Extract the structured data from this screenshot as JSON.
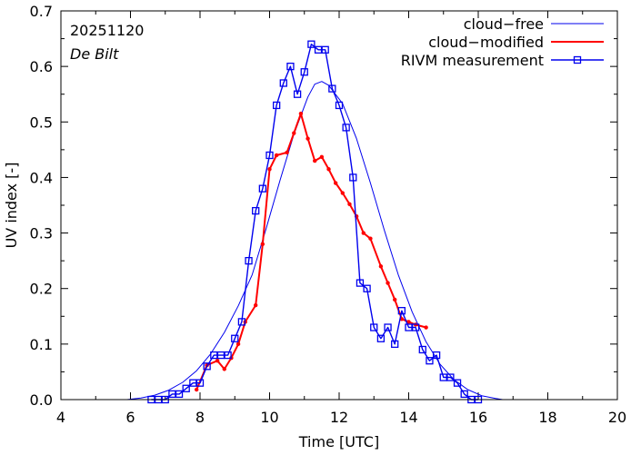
{
  "chart_data": {
    "type": "line",
    "xlabel": "Time  [UTC]",
    "ylabel": "UV index  [-]",
    "xlim": [
      4,
      20
    ],
    "ylim": [
      0,
      0.7
    ],
    "xticks": [
      "4",
      "6",
      "8",
      "10",
      "12",
      "14",
      "16",
      "18",
      "20"
    ],
    "yticks": [
      "0.0",
      "0.1",
      "0.2",
      "0.3",
      "0.4",
      "0.5",
      "0.6",
      "0.7"
    ],
    "annotations": {
      "date": "20251120",
      "location": "De Bilt"
    },
    "legend_position": "top-right",
    "series": [
      {
        "name": "cloud−free",
        "style": "line",
        "color": "#0000ee",
        "x": [
          5.9,
          6.3,
          6.7,
          7.1,
          7.5,
          7.9,
          8.3,
          8.7,
          9.1,
          9.5,
          9.9,
          10.3,
          10.7,
          11.1,
          11.3,
          11.5,
          11.7,
          12.1,
          12.5,
          12.9,
          13.3,
          13.7,
          14.1,
          14.5,
          14.9,
          15.3,
          15.7,
          16.1,
          16.5,
          16.7
        ],
        "y": [
          0.0,
          0.003,
          0.008,
          0.017,
          0.031,
          0.052,
          0.082,
          0.121,
          0.169,
          0.225,
          0.308,
          0.395,
          0.478,
          0.545,
          0.568,
          0.573,
          0.566,
          0.533,
          0.47,
          0.39,
          0.305,
          0.225,
          0.158,
          0.104,
          0.064,
          0.036,
          0.018,
          0.007,
          0.002,
          0.0
        ]
      },
      {
        "name": "cloud−modified",
        "style": "line-dots",
        "color": "#ff0000",
        "x": [
          7.9,
          8.2,
          8.5,
          8.7,
          8.9,
          9.1,
          9.3,
          9.6,
          9.8,
          10.0,
          10.2,
          10.5,
          10.7,
          10.9,
          11.1,
          11.3,
          11.5,
          11.7,
          11.9,
          12.1,
          12.3,
          12.5,
          12.7,
          12.9,
          13.2,
          13.4,
          13.6,
          13.8,
          14.0,
          14.2,
          14.5
        ],
        "y": [
          0.018,
          0.062,
          0.07,
          0.055,
          0.075,
          0.1,
          0.14,
          0.17,
          0.28,
          0.415,
          0.44,
          0.445,
          0.48,
          0.515,
          0.47,
          0.43,
          0.437,
          0.415,
          0.39,
          0.372,
          0.352,
          0.33,
          0.3,
          0.29,
          0.24,
          0.21,
          0.18,
          0.145,
          0.14,
          0.135,
          0.13
        ]
      },
      {
        "name": "RIVM measurement",
        "style": "line-squares",
        "color": "#0000ee",
        "x": [
          6.6,
          6.8,
          7.0,
          7.2,
          7.4,
          7.6,
          7.8,
          8.0,
          8.2,
          8.4,
          8.6,
          8.8,
          9.0,
          9.2,
          9.4,
          9.6,
          9.8,
          10.0,
          10.2,
          10.4,
          10.6,
          10.8,
          11.0,
          11.2,
          11.4,
          11.6,
          11.8,
          12.0,
          12.2,
          12.4,
          12.6,
          12.8,
          13.0,
          13.2,
          13.4,
          13.6,
          13.8,
          14.0,
          14.2,
          14.4,
          14.6,
          14.8,
          15.0,
          15.2,
          15.4,
          15.6,
          15.8,
          16.0
        ],
        "y": [
          0.0,
          0.0,
          0.0,
          0.01,
          0.01,
          0.02,
          0.03,
          0.03,
          0.06,
          0.08,
          0.08,
          0.08,
          0.11,
          0.14,
          0.25,
          0.34,
          0.38,
          0.44,
          0.53,
          0.57,
          0.6,
          0.55,
          0.59,
          0.64,
          0.63,
          0.63,
          0.56,
          0.53,
          0.49,
          0.4,
          0.21,
          0.2,
          0.13,
          0.11,
          0.13,
          0.1,
          0.16,
          0.13,
          0.13,
          0.09,
          0.07,
          0.08,
          0.04,
          0.04,
          0.03,
          0.01,
          0.0,
          0.0
        ]
      }
    ]
  }
}
